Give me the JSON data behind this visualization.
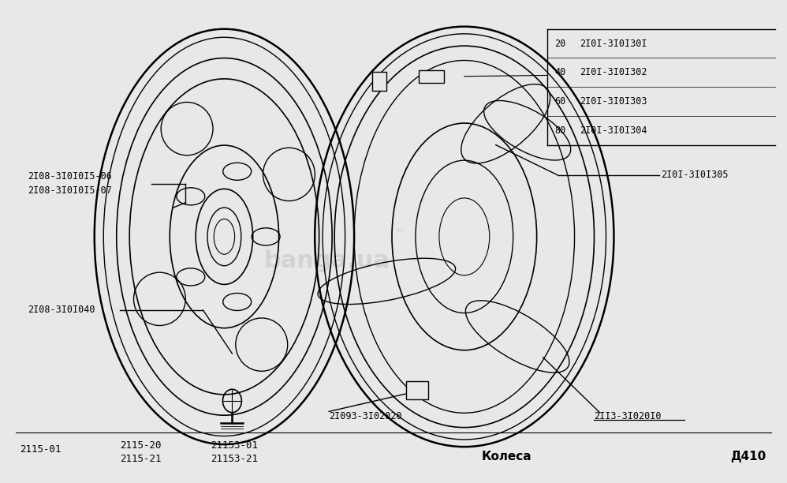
{
  "bg_color": "#e8e8e8",
  "font_size_label": 8.5,
  "font_size_bottom": 9,
  "font_size_bottom_bold": 11,
  "box_entries": [
    [
      "20",
      "2I0I-3I0I30I"
    ],
    [
      "40",
      "2I0I-3I0I302"
    ],
    [
      "60",
      "2I0I-3I0I303"
    ],
    [
      "80",
      "2I0I-3I0I304"
    ]
  ],
  "label_305": "2I0I-3I0I305",
  "label_06": "2I08-3I0I0I5-06",
  "label_07": "2I08-3I0I0I5-07",
  "label_040": "2I08-3I0I040",
  "label_2093": "2I093-3I02020",
  "label_2113": "2II3-3I020I0",
  "bottom_labels": [
    "2115-01",
    "2115-20",
    "2115-21",
    "21153-01",
    "21153-21"
  ],
  "bottom_center": "Колеса",
  "bottom_right": "Д410",
  "watermark": "banga.ua",
  "tm": "™"
}
